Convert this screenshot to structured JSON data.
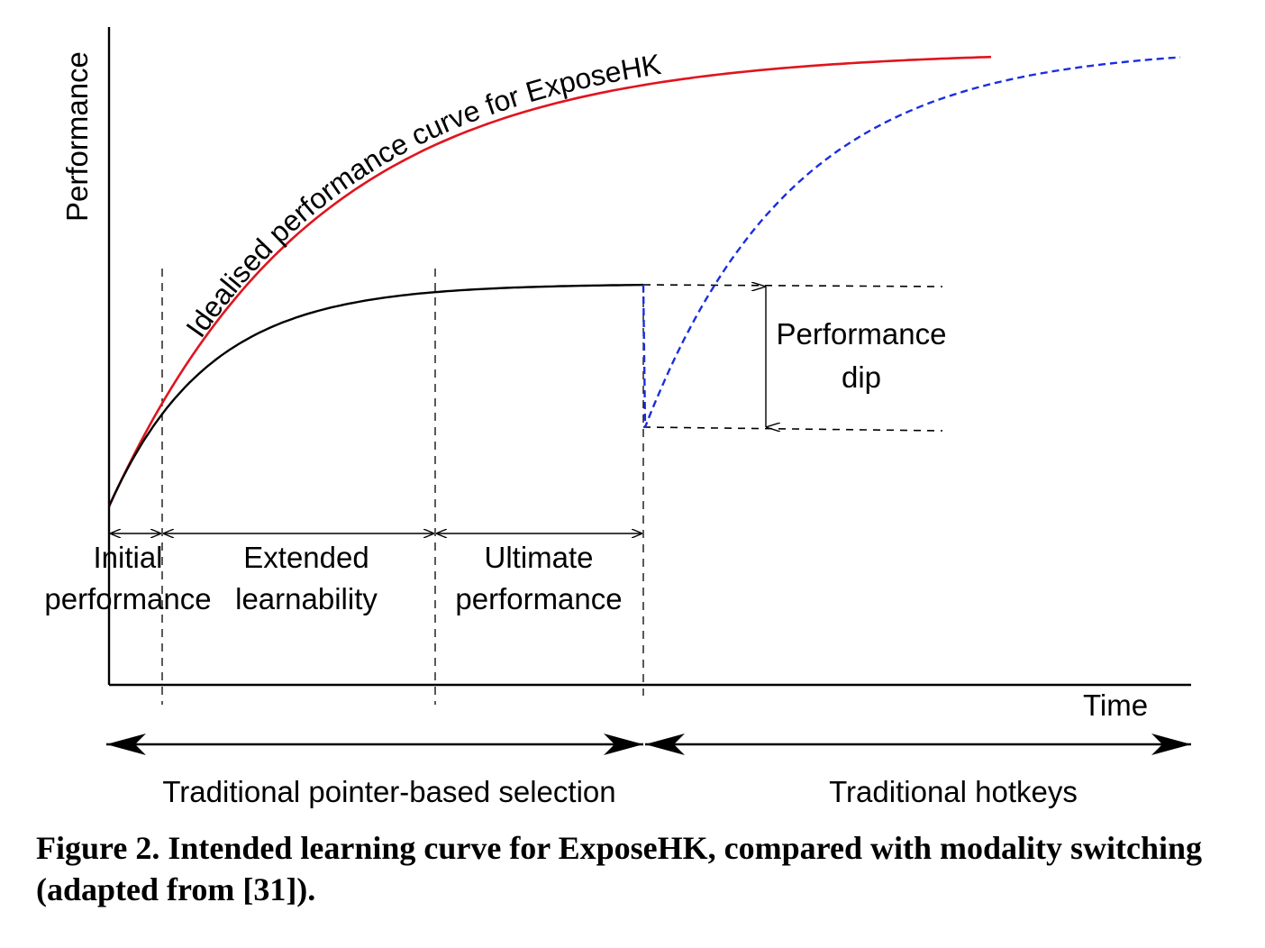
{
  "axes": {
    "y_label": "Performance",
    "x_label": "Time"
  },
  "curves": {
    "idealised_label": "Idealised performance curve for ExposeHK",
    "idealised_color": "#e0141e",
    "pointer_color": "#000000",
    "hotkey_color": "#1a2ee0"
  },
  "phases": {
    "initial_line1": "Initial",
    "initial_line2": "performance",
    "extended_line1": "Extended",
    "extended_line2": "learnability",
    "ultimate_line1": "Ultimate",
    "ultimate_line2": "performance"
  },
  "dip": {
    "line1": "Performance",
    "line2": "dip"
  },
  "modalities": {
    "left": "Traditional pointer-based selection",
    "right": "Traditional hotkeys"
  },
  "caption": "Figure 2. Intended learning curve for ExposeHK, compared with modality switching (adapted from [31])."
}
